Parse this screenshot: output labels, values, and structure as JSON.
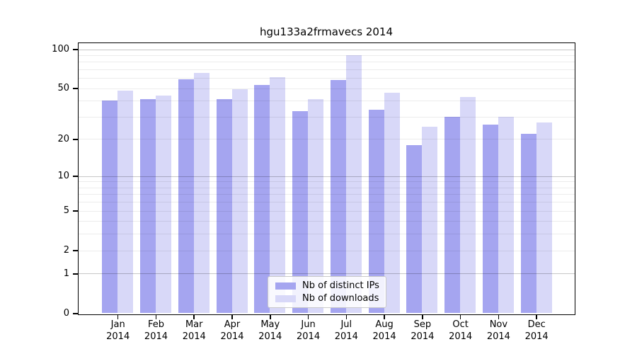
{
  "chart_data": {
    "type": "bar",
    "title": "hgu133a2frmavecs 2014",
    "x_tick_year": "2014",
    "categories": [
      "Jan",
      "Feb",
      "Mar",
      "Apr",
      "May",
      "Jun",
      "Jul",
      "Aug",
      "Sep",
      "Oct",
      "Nov",
      "Dec"
    ],
    "series": [
      {
        "name": "Nb of distinct IPs",
        "color": "#a5a5f0",
        "values": [
          40,
          41,
          59,
          41,
          53,
          33,
          58,
          34,
          18,
          30,
          26,
          22
        ]
      },
      {
        "name": "Nb of downloads",
        "color": "#d8d8f8",
        "values": [
          48,
          44,
          66,
          49,
          61,
          41,
          90,
          46,
          25,
          43,
          30,
          27
        ]
      }
    ],
    "y_ticks": [
      0,
      1,
      2,
      5,
      10,
      20,
      50,
      100
    ],
    "y_scale": "log10(value+1)",
    "ylim": [
      0,
      112
    ],
    "grid": {
      "minor": [
        2,
        3,
        4,
        5,
        6,
        7,
        8,
        9,
        20,
        30,
        40,
        50,
        60,
        70,
        80,
        90
      ],
      "major": [
        1,
        10,
        100
      ]
    },
    "legend_position": "lower center"
  },
  "colors": {
    "background": "#ffffff",
    "axis": "#000000",
    "grid_minor": "#ebebeb",
    "grid_major": "#c6c6c6",
    "legend_border": "#c9c9c9"
  }
}
